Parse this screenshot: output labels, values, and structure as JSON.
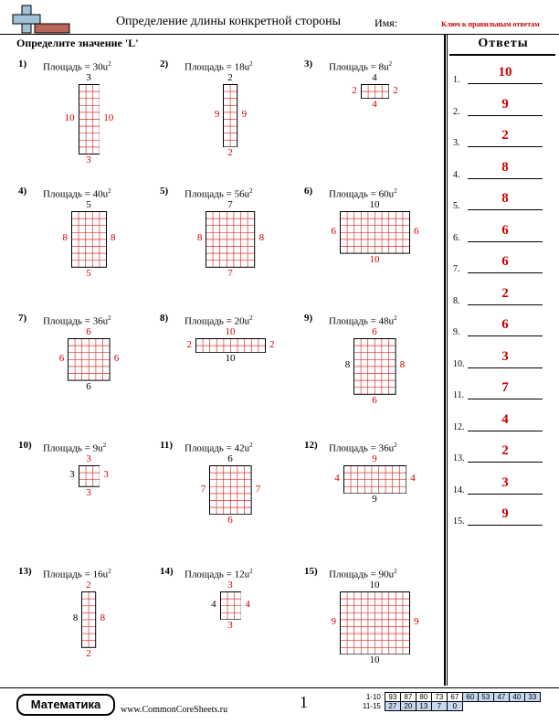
{
  "header": {
    "title": "Определение длины конкретной стороны",
    "name_label": "Имя:",
    "key_text": "Ключ к правильным ответам",
    "instruction": "Определите значение 'L'"
  },
  "sidebar": {
    "title": "Ответы",
    "answers": [
      {
        "num": "1.",
        "val": "10"
      },
      {
        "num": "2.",
        "val": "9"
      },
      {
        "num": "3.",
        "val": "2"
      },
      {
        "num": "4.",
        "val": "8"
      },
      {
        "num": "5.",
        "val": "8"
      },
      {
        "num": "6.",
        "val": "6"
      },
      {
        "num": "7.",
        "val": "6"
      },
      {
        "num": "8.",
        "val": "2"
      },
      {
        "num": "9.",
        "val": "6"
      },
      {
        "num": "10.",
        "val": "3"
      },
      {
        "num": "11.",
        "val": "7"
      },
      {
        "num": "12.",
        "val": "4"
      },
      {
        "num": "13.",
        "val": "2"
      },
      {
        "num": "14.",
        "val": "3"
      },
      {
        "num": "15.",
        "val": "9"
      }
    ]
  },
  "problems": [
    {
      "num": "1)",
      "area": "Площадь = 30u",
      "exp": "2",
      "cols": 3,
      "rows": 10,
      "top": "3",
      "bottom": "3",
      "left": "10",
      "right": "10",
      "redTop": false,
      "redBottom": true,
      "redLeft": true,
      "redRight": true
    },
    {
      "num": "2)",
      "area": "Площадь = 18u",
      "exp": "2",
      "cols": 2,
      "rows": 9,
      "top": "2",
      "bottom": "2",
      "left": "9",
      "right": "9",
      "redTop": false,
      "redBottom": true,
      "redLeft": true,
      "redRight": true
    },
    {
      "num": "3)",
      "area": "Площадь = 8u",
      "exp": "2",
      "cols": 4,
      "rows": 2,
      "top": "4",
      "bottom": "4",
      "left": "2",
      "right": "2",
      "redTop": false,
      "redBottom": true,
      "redLeft": true,
      "redRight": true
    },
    {
      "num": "4)",
      "area": "Площадь = 40u",
      "exp": "2",
      "cols": 5,
      "rows": 8,
      "top": "5",
      "bottom": "5",
      "left": "8",
      "right": "8",
      "redTop": false,
      "redBottom": true,
      "redLeft": true,
      "redRight": true
    },
    {
      "num": "5)",
      "area": "Площадь = 56u",
      "exp": "2",
      "cols": 7,
      "rows": 8,
      "top": "7",
      "bottom": "7",
      "left": "8",
      "right": "8",
      "redTop": false,
      "redBottom": true,
      "redLeft": true,
      "redRight": true
    },
    {
      "num": "6)",
      "area": "Площадь = 60u",
      "exp": "2",
      "cols": 10,
      "rows": 6,
      "top": "10",
      "bottom": "10",
      "left": "6",
      "right": "6",
      "redTop": false,
      "redBottom": true,
      "redLeft": true,
      "redRight": true
    },
    {
      "num": "7)",
      "area": "Площадь = 36u",
      "exp": "2",
      "cols": 6,
      "rows": 6,
      "top": "6",
      "bottom": "6",
      "left": "6",
      "right": "6",
      "redTop": true,
      "redBottom": false,
      "redLeft": true,
      "redRight": true
    },
    {
      "num": "8)",
      "area": "Площадь = 20u",
      "exp": "2",
      "cols": 10,
      "rows": 2,
      "top": "10",
      "bottom": "10",
      "left": "2",
      "right": "2",
      "redTop": true,
      "redBottom": false,
      "redLeft": true,
      "redRight": true
    },
    {
      "num": "9)",
      "area": "Площадь = 48u",
      "exp": "2",
      "cols": 6,
      "rows": 8,
      "top": "6",
      "bottom": "6",
      "left": "8",
      "right": "8",
      "redTop": true,
      "redBottom": true,
      "redLeft": false,
      "redRight": true
    },
    {
      "num": "10)",
      "area": "Площадь = 9u",
      "exp": "2",
      "cols": 3,
      "rows": 3,
      "top": "3",
      "bottom": "3",
      "left": "3",
      "right": "3",
      "redTop": true,
      "redBottom": true,
      "redLeft": false,
      "redRight": true
    },
    {
      "num": "11)",
      "area": "Площадь = 42u",
      "exp": "2",
      "cols": 6,
      "rows": 7,
      "top": "6",
      "bottom": "6",
      "left": "7",
      "right": "7",
      "redTop": false,
      "redBottom": true,
      "redLeft": true,
      "redRight": true
    },
    {
      "num": "12)",
      "area": "Площадь = 36u",
      "exp": "2",
      "cols": 9,
      "rows": 4,
      "top": "9",
      "bottom": "9",
      "left": "4",
      "right": "4",
      "redTop": true,
      "redBottom": false,
      "redLeft": true,
      "redRight": true
    },
    {
      "num": "13)",
      "area": "Площадь = 16u",
      "exp": "2",
      "cols": 2,
      "rows": 8,
      "top": "2",
      "bottom": "2",
      "left": "8",
      "right": "8",
      "redTop": true,
      "redBottom": true,
      "redLeft": false,
      "redRight": true
    },
    {
      "num": "14)",
      "area": "Площадь = 12u",
      "exp": "2",
      "cols": 3,
      "rows": 4,
      "top": "3",
      "bottom": "3",
      "left": "4",
      "right": "4",
      "redTop": true,
      "redBottom": true,
      "redLeft": false,
      "redRight": true
    },
    {
      "num": "15)",
      "area": "Площадь = 90u",
      "exp": "2",
      "cols": 10,
      "rows": 9,
      "top": "10",
      "bottom": "10",
      "left": "9",
      "right": "9",
      "redTop": false,
      "redBottom": false,
      "redLeft": true,
      "redRight": true
    }
  ],
  "footer": {
    "badge": "Математика",
    "site": "www.CommonCoreSheets.ru",
    "page": "1",
    "row1_label": "1-10",
    "row1": [
      "93",
      "87",
      "80",
      "73",
      "67",
      "60",
      "53",
      "47",
      "40",
      "33"
    ],
    "row2_label": "11-15",
    "row2": [
      "27",
      "20",
      "13",
      "7",
      "0"
    ]
  }
}
